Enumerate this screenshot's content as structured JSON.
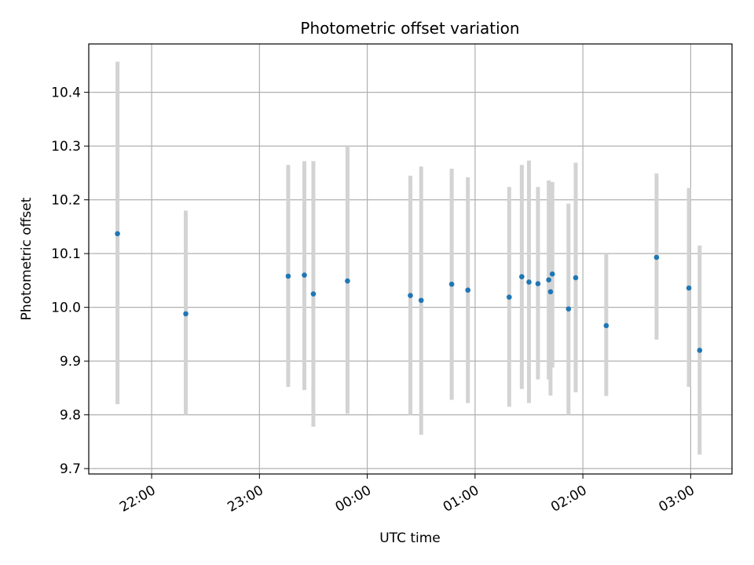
{
  "chart_data": {
    "type": "scatter",
    "title": "Photometric offset variation",
    "xlabel": "UTC time",
    "ylabel": "Photometric offset",
    "x_axis": {
      "type": "time",
      "tick_labels": [
        "22:00",
        "23:00",
        "00:00",
        "01:00",
        "02:00",
        "03:00"
      ],
      "range": [
        "21:25",
        "03:23"
      ]
    },
    "y_axis": {
      "tick_labels": [
        "9.7",
        "9.8",
        "9.9",
        "10.0",
        "10.1",
        "10.2",
        "10.3",
        "10.4"
      ],
      "range": [
        9.69,
        10.49
      ]
    },
    "grid": true,
    "marker_color": "#1f77b4",
    "errorbar_color": "#d3d3d3",
    "points": [
      {
        "time": "21:41",
        "y": 10.137,
        "low": 9.82,
        "high": 10.457
      },
      {
        "time": "22:19",
        "y": 9.988,
        "low": 9.8,
        "high": 10.18
      },
      {
        "time": "23:16",
        "y": 10.058,
        "low": 9.852,
        "high": 10.265
      },
      {
        "time": "23:25",
        "y": 10.06,
        "low": 9.846,
        "high": 10.272
      },
      {
        "time": "23:30",
        "y": 10.025,
        "low": 9.778,
        "high": 10.272
      },
      {
        "time": "23:49",
        "y": 10.049,
        "low": 9.802,
        "high": 10.3
      },
      {
        "time": "00:24",
        "y": 10.022,
        "low": 9.8,
        "high": 10.245
      },
      {
        "time": "00:30",
        "y": 10.013,
        "low": 9.763,
        "high": 10.262
      },
      {
        "time": "00:47",
        "y": 10.043,
        "low": 9.828,
        "high": 10.258
      },
      {
        "time": "00:56",
        "y": 10.032,
        "low": 9.822,
        "high": 10.242
      },
      {
        "time": "01:19",
        "y": 10.019,
        "low": 9.815,
        "high": 10.224
      },
      {
        "time": "01:26",
        "y": 10.057,
        "low": 9.848,
        "high": 10.265
      },
      {
        "time": "01:30",
        "y": 10.047,
        "low": 9.822,
        "high": 10.273
      },
      {
        "time": "01:35",
        "y": 10.044,
        "low": 9.866,
        "high": 10.224
      },
      {
        "time": "01:41",
        "y": 10.051,
        "low": 9.866,
        "high": 10.236
      },
      {
        "time": "01:42",
        "y": 10.029,
        "low": 9.836,
        "high": 10.233
      },
      {
        "time": "01:43",
        "y": 10.062,
        "low": 9.888,
        "high": 10.233
      },
      {
        "time": "01:52",
        "y": 9.997,
        "low": 9.8,
        "high": 10.193
      },
      {
        "time": "01:56",
        "y": 10.055,
        "low": 9.842,
        "high": 10.269
      },
      {
        "time": "02:13",
        "y": 9.966,
        "low": 9.835,
        "high": 10.1
      },
      {
        "time": "02:41",
        "y": 10.093,
        "low": 9.94,
        "high": 10.249
      },
      {
        "time": "02:59",
        "y": 10.036,
        "low": 9.852,
        "high": 10.222
      },
      {
        "time": "03:05",
        "y": 9.92,
        "low": 9.726,
        "high": 10.115
      }
    ]
  }
}
